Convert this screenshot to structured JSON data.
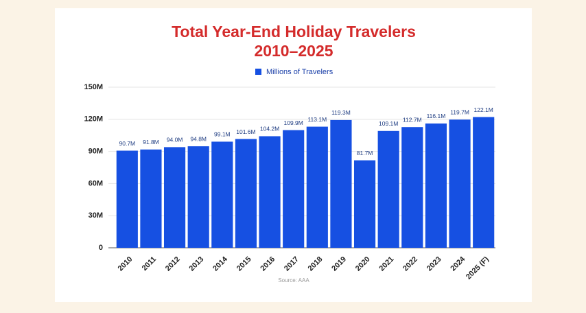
{
  "chart_data": {
    "type": "bar",
    "title": "Total Year-End Holiday Travelers",
    "subtitle": "2010–2025",
    "categories": [
      "2010",
      "2011",
      "2012",
      "2013",
      "2014",
      "2015",
      "2016",
      "2017",
      "2018",
      "2019",
      "2020",
      "2021",
      "2022",
      "2023",
      "2024",
      "2025 (F)"
    ],
    "series": [
      {
        "name": "Millions of Travelers",
        "color": "#1650e2",
        "values": [
          90.7,
          91.8,
          94.0,
          94.8,
          99.1,
          101.6,
          104.2,
          109.9,
          113.1,
          119.3,
          81.7,
          109.1,
          112.7,
          116.1,
          119.7,
          122.1
        ],
        "value_labels": [
          "90.7M",
          "91.8M",
          "94.0M",
          "94.8M",
          "99.1M",
          "101.6M",
          "104.2M",
          "109.9M",
          "113.1M",
          "119.3M",
          "81.7M",
          "109.1M",
          "112.7M",
          "116.1M",
          "119.7M",
          "122.1M"
        ]
      }
    ],
    "ylim": [
      0,
      150
    ],
    "yticks": [
      0,
      {
        "value": 30,
        "label": "30M"
      },
      {
        "value": 60,
        "label": "60M"
      },
      {
        "value": 90,
        "label": "90M"
      },
      {
        "value": 120,
        "label": "120M"
      },
      {
        "value": 150,
        "label": "150M"
      }
    ],
    "grid": true,
    "source": "Source: AAA"
  }
}
